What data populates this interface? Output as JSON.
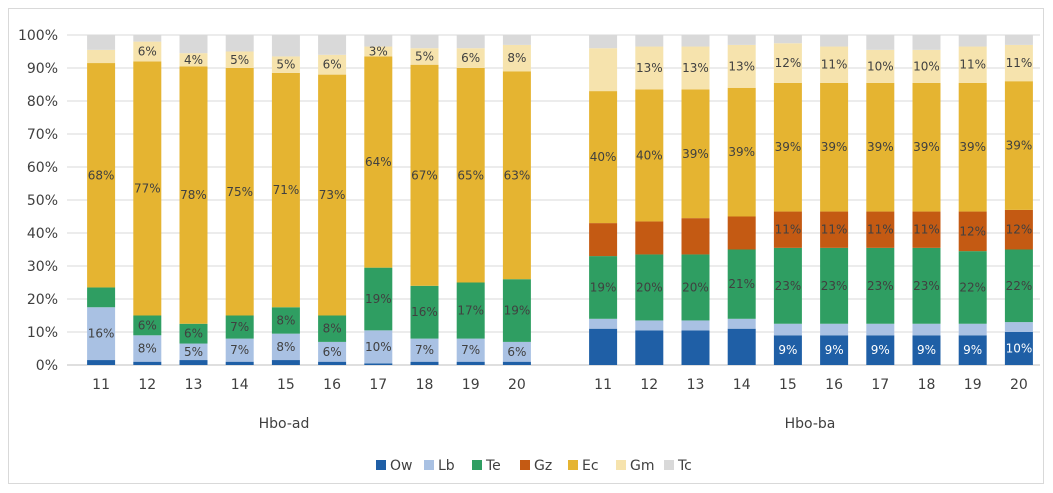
{
  "chart_data": {
    "type": "bar",
    "stacked": true,
    "percent": true,
    "ylim": [
      0,
      100
    ],
    "y_ticks": [
      "0%",
      "10%",
      "20%",
      "30%",
      "40%",
      "50%",
      "60%",
      "70%",
      "80%",
      "90%",
      "100%"
    ],
    "grid": true,
    "legend_position": "bottom",
    "series": [
      {
        "name": "Ow",
        "color": "#1f5fa6"
      },
      {
        "name": "Lb",
        "color": "#a9c1e3"
      },
      {
        "name": "Te",
        "color": "#2f9e62"
      },
      {
        "name": "Gz",
        "color": "#c45a13"
      },
      {
        "name": "Ec",
        "color": "#e5b431"
      },
      {
        "name": "Gm",
        "color": "#f6e3ad"
      },
      {
        "name": "Tc",
        "color": "#d9d9d9"
      }
    ],
    "groups": [
      {
        "name": "Hbo-ad",
        "categories": [
          "11",
          "12",
          "13",
          "14",
          "15",
          "16",
          "17",
          "18",
          "19",
          "20"
        ],
        "values": {
          "Ow": [
            1.5,
            1,
            1.5,
            1,
            1.5,
            1,
            0.5,
            1,
            1,
            1
          ],
          "Lb": [
            16,
            8,
            5,
            7,
            8,
            6,
            10,
            7,
            7,
            6
          ],
          "Te": [
            6,
            6,
            6,
            7,
            8,
            8,
            19,
            16,
            17,
            19
          ],
          "Gz": [
            0,
            0,
            0,
            0,
            0,
            0,
            0,
            0,
            0,
            0
          ],
          "Ec": [
            68,
            77,
            78,
            75,
            71,
            73,
            64,
            67,
            65,
            63
          ],
          "Gm": [
            4,
            6,
            4,
            5,
            5,
            6,
            3,
            5,
            6,
            8
          ],
          "Tc": [
            4.5,
            2,
            5.5,
            5,
            6.5,
            6,
            3.5,
            4,
            4,
            3
          ]
        },
        "labels": {
          "Ow": [
            "",
            "",
            "",
            "",
            "",
            "",
            "",
            "",
            "",
            ""
          ],
          "Lb": [
            "16%",
            "8%",
            "5%",
            "7%",
            "8%",
            "6%",
            "10%",
            "7%",
            "7%",
            "6%"
          ],
          "Te": [
            "",
            "6%",
            "6%",
            "7%",
            "8%",
            "8%",
            "19%",
            "16%",
            "17%",
            "19%"
          ],
          "Gz": [
            "",
            "",
            "",
            "",
            "",
            "",
            "",
            "",
            "",
            ""
          ],
          "Ec": [
            "68%",
            "77%",
            "78%",
            "75%",
            "71%",
            "73%",
            "64%",
            "67%",
            "65%",
            "63%"
          ],
          "Gm": [
            "",
            "6%",
            "4%",
            "5%",
            "5%",
            "6%",
            "3%",
            "5%",
            "6%",
            "8%"
          ],
          "Tc": [
            "",
            "",
            "",
            "",
            "",
            "",
            "",
            "",
            "",
            ""
          ]
        }
      },
      {
        "name": "Hbo-ba",
        "categories": [
          "11",
          "12",
          "13",
          "14",
          "15",
          "16",
          "17",
          "18",
          "19",
          "20"
        ],
        "values": {
          "Ow": [
            11,
            10.5,
            10.5,
            11,
            9,
            9,
            9,
            9,
            9,
            10
          ],
          "Lb": [
            3,
            3,
            3,
            3,
            3.5,
            3.5,
            3.5,
            3.5,
            3.5,
            3
          ],
          "Te": [
            19,
            20,
            20,
            21,
            23,
            23,
            23,
            23,
            22,
            22
          ],
          "Gz": [
            10,
            10,
            11,
            10,
            11,
            11,
            11,
            11,
            12,
            12
          ],
          "Ec": [
            40,
            40,
            39,
            39,
            39,
            39,
            39,
            39,
            39,
            39
          ],
          "Gm": [
            13,
            13,
            13,
            13,
            12,
            11,
            10,
            10,
            11,
            11
          ],
          "Tc": [
            4,
            3.5,
            3.5,
            3,
            2.5,
            3.5,
            4.5,
            4.5,
            3.5,
            3
          ]
        },
        "labels": {
          "Ow": [
            "",
            "",
            "",
            "",
            "9%",
            "9%",
            "9%",
            "9%",
            "9%",
            "10%"
          ],
          "Lb": [
            "",
            "",
            "",
            "",
            "",
            "",
            "",
            "",
            "",
            ""
          ],
          "Te": [
            "19%",
            "20%",
            "20%",
            "21%",
            "23%",
            "23%",
            "23%",
            "23%",
            "22%",
            "22%"
          ],
          "Gz": [
            "",
            "",
            "",
            "",
            "11%",
            "11%",
            "11%",
            "11%",
            "12%",
            "12%"
          ],
          "Ec": [
            "40%",
            "40%",
            "39%",
            "39%",
            "39%",
            "39%",
            "39%",
            "39%",
            "39%",
            "39%"
          ],
          "Gm": [
            "",
            "13%",
            "13%",
            "13%",
            "12%",
            "11%",
            "10%",
            "10%",
            "11%",
            "11%"
          ],
          "Tc": [
            "",
            "",
            "",
            "",
            "",
            "",
            "",
            "",
            "",
            ""
          ]
        }
      }
    ]
  }
}
